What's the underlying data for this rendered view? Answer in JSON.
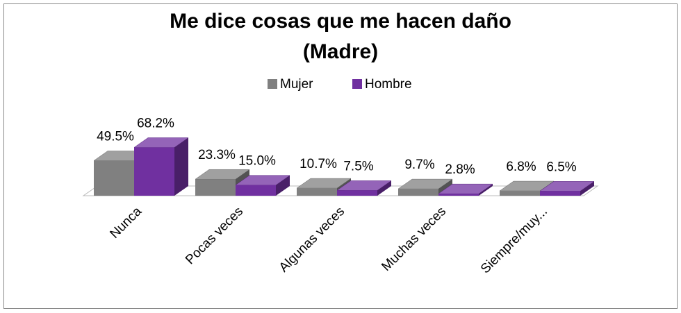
{
  "chart_data": {
    "type": "bar3d",
    "title": [
      "Me dice cosas que me hacen daño",
      "(Madre)"
    ],
    "categories": [
      "Nunca",
      "Pocas veces",
      "Algunas veces",
      "Muchas veces",
      "Siempre/muy..."
    ],
    "series": [
      {
        "name": "Mujer",
        "color": "#808080",
        "values": [
          49.5,
          23.3,
          10.7,
          9.7,
          6.8
        ],
        "value_labels": [
          "49.5%",
          "23.3%",
          "10.7%",
          "9.7%",
          "6.8%"
        ]
      },
      {
        "name": "Hombre",
        "color": "#7030a0",
        "values": [
          68.2,
          15.0,
          7.5,
          2.8,
          6.5
        ],
        "value_labels": [
          "68.2%",
          "15.0%",
          "7.5%",
          "2.8%",
          "6.5%"
        ]
      }
    ],
    "legend": "top"
  }
}
